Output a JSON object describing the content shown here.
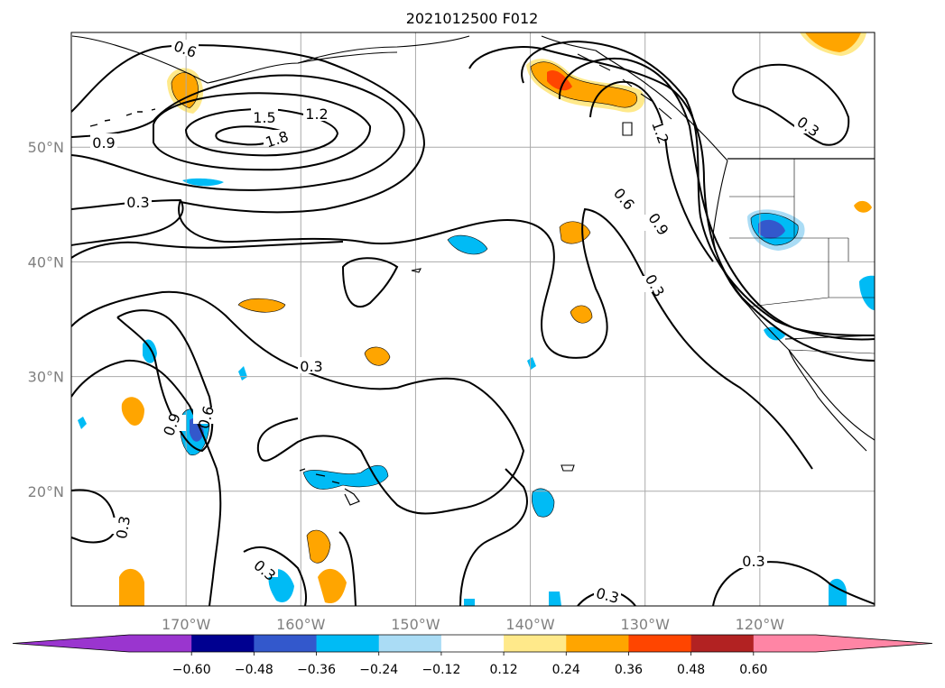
{
  "map": {
    "title": "2021012500 F012",
    "projection": "PlateCarree",
    "extent": {
      "lon_min": -180,
      "lon_max": -110,
      "lat_min": 10,
      "lat_max": 60
    },
    "lat_gridlines": [
      {
        "lat": 50,
        "label": "50°N"
      },
      {
        "lat": 40,
        "label": "40°N"
      },
      {
        "lat": 30,
        "label": "30°N"
      },
      {
        "lat": 20,
        "label": "20°N"
      }
    ],
    "lon_gridlines": [
      {
        "lon": -170,
        "label": "170°W"
      },
      {
        "lon": -160,
        "label": "160°W"
      },
      {
        "lon": -150,
        "label": "150°W"
      },
      {
        "lon": -140,
        "label": "140°W"
      },
      {
        "lon": -130,
        "label": "130°W"
      },
      {
        "lon": -120,
        "label": "120°W"
      }
    ],
    "contour_labels": [
      "0.6",
      "1.5",
      "1.2",
      "1.8",
      "0.9",
      "0.3",
      "0.6",
      "0.9",
      "0.3",
      "1.2",
      "0.3",
      "0.9",
      "0.6",
      "0.3",
      "0.3",
      "0.3",
      "0.3",
      "0.3"
    ]
  },
  "colorbar": {
    "extend": "both",
    "colors": [
      "#9a35cf",
      "#000090",
      "#3358cc",
      "#00bbf5",
      "#aadcf5",
      "#ffffff",
      "#ffe98a",
      "#ffa500",
      "#ff4500",
      "#b22222",
      "#ff85a5"
    ],
    "ticks": [
      "−0.60",
      "−0.48",
      "−0.36",
      "−0.24",
      "−0.12",
      "0.12",
      "0.24",
      "0.36",
      "0.48",
      "0.60"
    ],
    "tick_values": [
      -0.6,
      -0.48,
      -0.36,
      -0.24,
      -0.12,
      0.12,
      0.24,
      0.36,
      0.48,
      0.6
    ]
  },
  "colors": {
    "contour_line": "#000000",
    "gridline": "#aaaaaa",
    "coastline": "#000000"
  }
}
